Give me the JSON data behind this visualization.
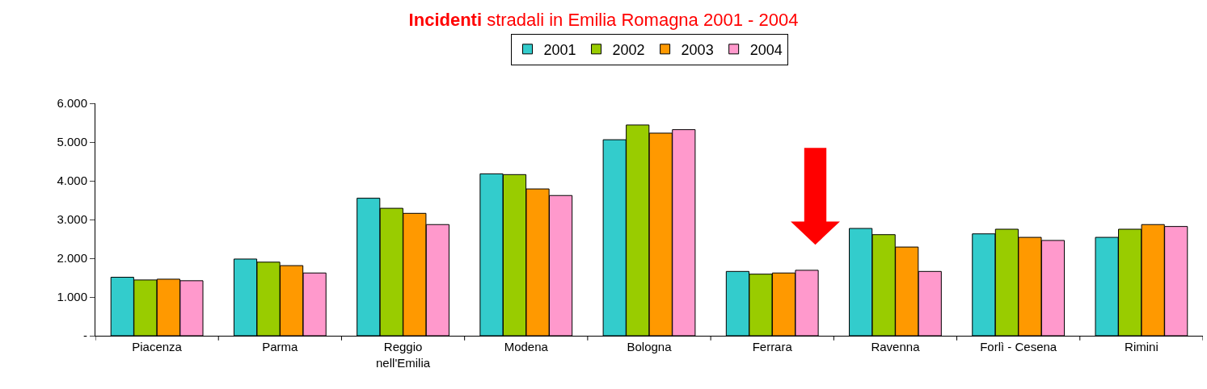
{
  "chart_data": {
    "type": "bar",
    "title": "Incidenti stradali in Emilia Romagna 2001 - 2004",
    "categories": [
      "Piacenza",
      "Parma",
      "Reggio nell'Emilia",
      "Modena",
      "Bologna",
      "Ferrara",
      "Ravenna",
      "Forlì - Cesena",
      "Rimini"
    ],
    "series": [
      {
        "name": "2001",
        "color": "#33cccc",
        "values": [
          1510,
          1980,
          3550,
          4180,
          5060,
          1660,
          2770,
          2630,
          2540
        ]
      },
      {
        "name": "2002",
        "color": "#99cc00",
        "values": [
          1440,
          1900,
          3290,
          4160,
          5440,
          1590,
          2610,
          2750,
          2750
        ]
      },
      {
        "name": "2003",
        "color": "#ff9900",
        "values": [
          1460,
          1810,
          3160,
          3790,
          5230,
          1620,
          2290,
          2540,
          2870
        ]
      },
      {
        "name": "2004",
        "color": "#ff99cc",
        "values": [
          1420,
          1620,
          2870,
          3620,
          5320,
          1690,
          1660,
          2460,
          2820
        ]
      }
    ],
    "ylim": [
      0,
      6000
    ],
    "yticks": [
      {
        "value": 0,
        "label": "-"
      },
      {
        "value": 1000,
        "label": "1.000"
      },
      {
        "value": 2000,
        "label": "2.000"
      },
      {
        "value": 3000,
        "label": "3.000"
      },
      {
        "value": 4000,
        "label": "4.000"
      },
      {
        "value": 5000,
        "label": "5.000"
      },
      {
        "value": 6000,
        "label": "6.000"
      }
    ],
    "grid": false,
    "legend": "top"
  }
}
